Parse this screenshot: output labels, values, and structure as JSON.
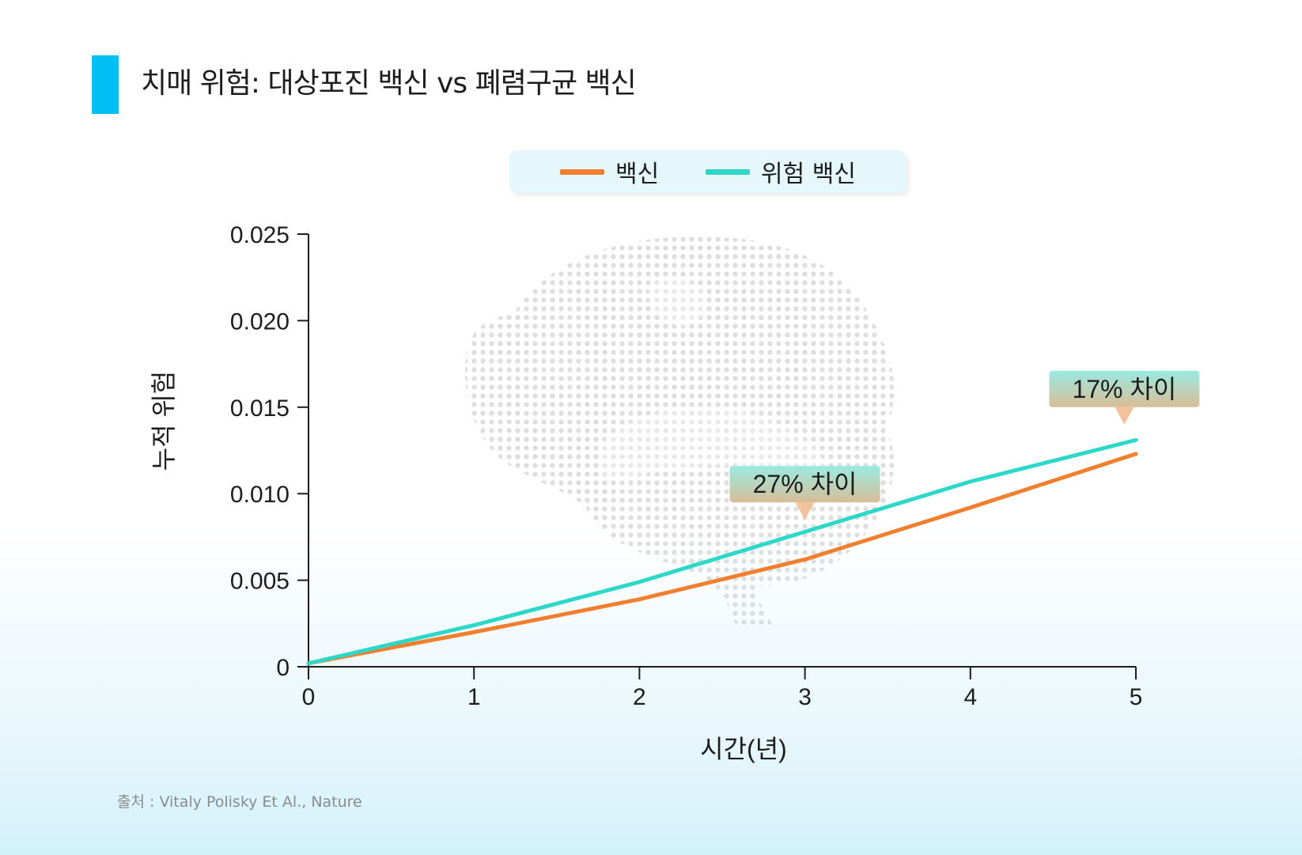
{
  "header": {
    "title": "치매 위험: 대상포진 백신 vs 폐렴구균 백신"
  },
  "legend": [
    {
      "label": "백신",
      "color": "#f08030"
    },
    {
      "label": "위험 백신",
      "color": "#2ed8c8"
    }
  ],
  "source": "출처 : Vitaly Polisky Et Al., Nature",
  "colors": {
    "accent_bar": "#00bff5",
    "axis": "#1d1d1d",
    "watermark": "brain-watermark-icon"
  },
  "chart_data": {
    "type": "line",
    "xlabel": "시간(년)",
    "ylabel": "누적 위험",
    "x": [
      0,
      1,
      2,
      3,
      4,
      5
    ],
    "xticks": [
      "0",
      "1",
      "2",
      "3",
      "4",
      "5"
    ],
    "yticks": [
      "0",
      "0.005",
      "0.010",
      "0.015",
      "0.020",
      "0.025"
    ],
    "ytick_values": [
      0,
      0.005,
      0.01,
      0.015,
      0.02,
      0.025
    ],
    "xlim": [
      0,
      5
    ],
    "ylim": [
      0,
      0.025
    ],
    "grid": false,
    "legend_position": "top-center",
    "series": [
      {
        "name": "백신",
        "color": "#f08030",
        "values": [
          0.0002,
          0.002,
          0.0039,
          0.0062,
          0.0092,
          0.0123
        ]
      },
      {
        "name": "위험 백신",
        "color": "#2ed8c8",
        "values": [
          0.0002,
          0.0024,
          0.0049,
          0.0078,
          0.0107,
          0.0131
        ]
      }
    ],
    "annotations": [
      {
        "text": "27% 차이",
        "x": 3,
        "y": 0.0095
      },
      {
        "text": "17% 차이",
        "x": 4.93,
        "y": 0.015
      }
    ]
  }
}
